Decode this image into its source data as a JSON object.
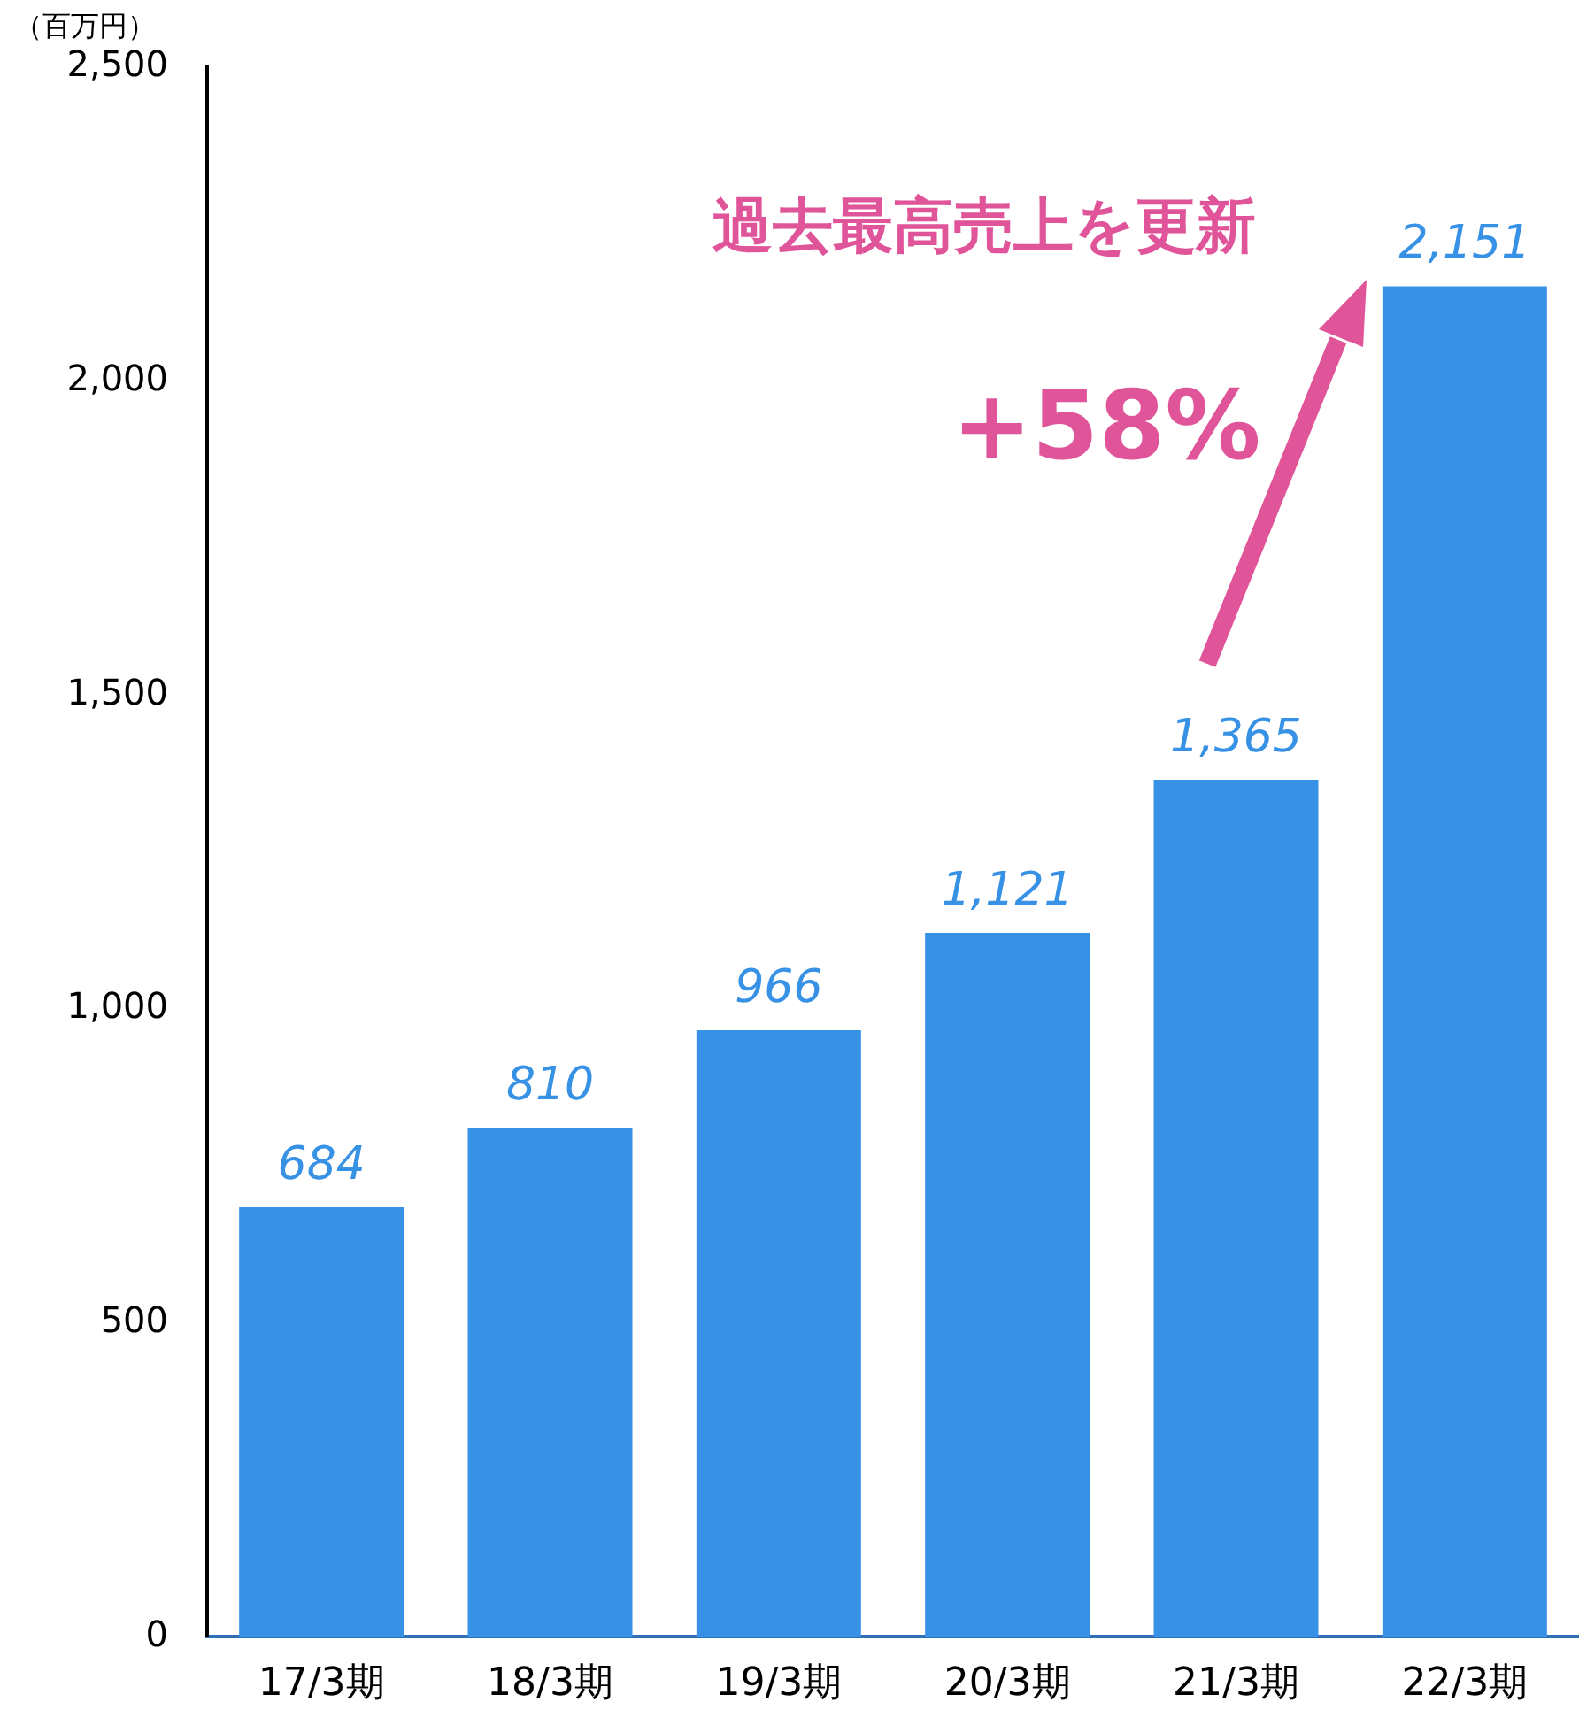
{
  "chart_data": {
    "type": "bar",
    "ylabel": "（百万円）",
    "categories": [
      "17/3期",
      "18/3期",
      "19/3期",
      "20/3期",
      "21/3期",
      "22/3期"
    ],
    "values": [
      684,
      810,
      966,
      1121,
      1365,
      2151
    ],
    "color": "#3792e6",
    "value_labels": [
      "684",
      "810",
      "966",
      "1,121",
      "1,365",
      "2,151"
    ],
    "ylim": [
      0,
      2500
    ],
    "yticks": [
      0,
      500,
      {
        "value": 1000,
        "label": "1,000"
      },
      {
        "value": 1500,
        "label": "1,500"
      },
      {
        "value": 2000,
        "label": "2,000"
      },
      {
        "value": 2500,
        "label": "2,500"
      }
    ],
    "grid": false,
    "legend": false,
    "annotations": [
      "過去最高売上を更新",
      "+58%"
    ]
  }
}
